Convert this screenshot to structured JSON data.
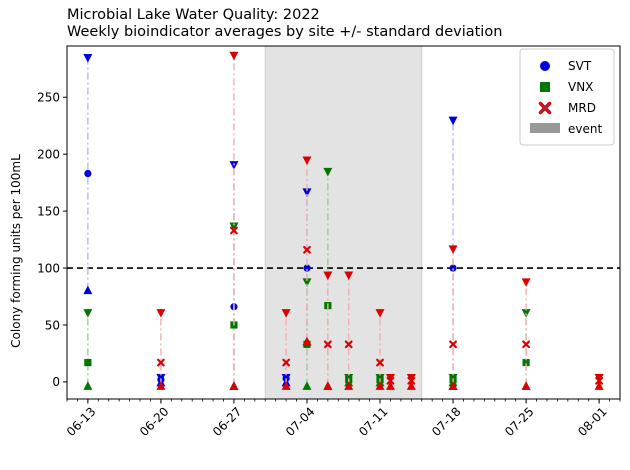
{
  "chart_data": {
    "type": "scatter",
    "title": "Microbial Lake Water Quality: 2022",
    "subtitle": "Weekly bioindicator averages by site +/- standard deviation",
    "ylabel": "Colony forming units per 100mL",
    "xlabel": "",
    "xlim": [
      "2022-06-11",
      "2022-08-03"
    ],
    "ylim": [
      -15,
      295
    ],
    "x_tick_labels": [
      "06-13",
      "06-20",
      "06-27",
      "07-04",
      "07-11",
      "07-18",
      "07-25",
      "08-01"
    ],
    "x_ticks": [
      "2022-06-13",
      "2022-06-20",
      "2022-06-27",
      "2022-07-04",
      "2022-07-11",
      "2022-07-18",
      "2022-07-25",
      "2022-08-01"
    ],
    "y_ticks": [
      0,
      50,
      100,
      150,
      200,
      250
    ],
    "threshold": 100,
    "event": {
      "start": "2022-06-30",
      "end": "2022-07-15"
    },
    "legend_position": "top-right",
    "legend": [
      "SVT",
      "VNX",
      "MRD",
      "event"
    ],
    "series": [
      {
        "name": "SVT",
        "color": "#0000dd",
        "marker": "circle",
        "points": [
          {
            "x": "2022-06-13",
            "y": 183,
            "low": 81,
            "high": 284
          },
          {
            "x": "2022-06-20",
            "y": 2,
            "low": 0,
            "high": 3
          },
          {
            "x": "2022-06-27",
            "y": 66,
            "low": -3,
            "high": 190
          },
          {
            "x": "2022-07-02",
            "y": 3,
            "low": 0,
            "high": 3
          },
          {
            "x": "2022-07-04",
            "y": 100,
            "low": 36,
            "high": 166
          },
          {
            "x": "2022-07-18",
            "y": 100,
            "low": -3,
            "high": 229
          }
        ]
      },
      {
        "name": "VNX",
        "color": "#007700",
        "marker": "square",
        "points": [
          {
            "x": "2022-06-13",
            "y": 17,
            "low": -3,
            "high": 60
          },
          {
            "x": "2022-06-27",
            "y": 50,
            "low": -3,
            "high": 136
          },
          {
            "x": "2022-07-04",
            "y": 33,
            "low": -3,
            "high": 87
          },
          {
            "x": "2022-07-06",
            "y": 67,
            "low": -3,
            "high": 184
          },
          {
            "x": "2022-07-08",
            "y": 2,
            "low": 0,
            "high": 3
          },
          {
            "x": "2022-07-11",
            "y": 2,
            "low": 0,
            "high": 3
          },
          {
            "x": "2022-07-18",
            "y": 2,
            "low": 0,
            "high": 3
          },
          {
            "x": "2022-07-25",
            "y": 17,
            "low": -3,
            "high": 60
          }
        ]
      },
      {
        "name": "MRD",
        "color": "#dd0000",
        "marker": "x",
        "points": [
          {
            "x": "2022-06-20",
            "y": 17,
            "low": -3,
            "high": 60
          },
          {
            "x": "2022-06-27",
            "y": 133,
            "low": -3,
            "high": 286
          },
          {
            "x": "2022-07-02",
            "y": 17,
            "low": -3,
            "high": 60
          },
          {
            "x": "2022-07-04",
            "y": 116,
            "low": 36,
            "high": 194
          },
          {
            "x": "2022-07-06",
            "y": 33,
            "low": -3,
            "high": 93
          },
          {
            "x": "2022-07-08",
            "y": 33,
            "low": -3,
            "high": 93
          },
          {
            "x": "2022-07-11",
            "y": 17,
            "low": -3,
            "high": 60
          },
          {
            "x": "2022-07-12",
            "y": 1,
            "low": -3,
            "high": 3
          },
          {
            "x": "2022-07-14",
            "y": 1,
            "low": -3,
            "high": 3
          },
          {
            "x": "2022-07-18",
            "y": 33,
            "low": -3,
            "high": 116
          },
          {
            "x": "2022-07-25",
            "y": 33,
            "low": -3,
            "high": 87
          },
          {
            "x": "2022-08-01",
            "y": 1,
            "low": -3,
            "high": 3
          }
        ]
      }
    ],
    "colors": {
      "event": "#999999",
      "event_fill": "#e3e3e3",
      "threshold": "#000000"
    }
  }
}
